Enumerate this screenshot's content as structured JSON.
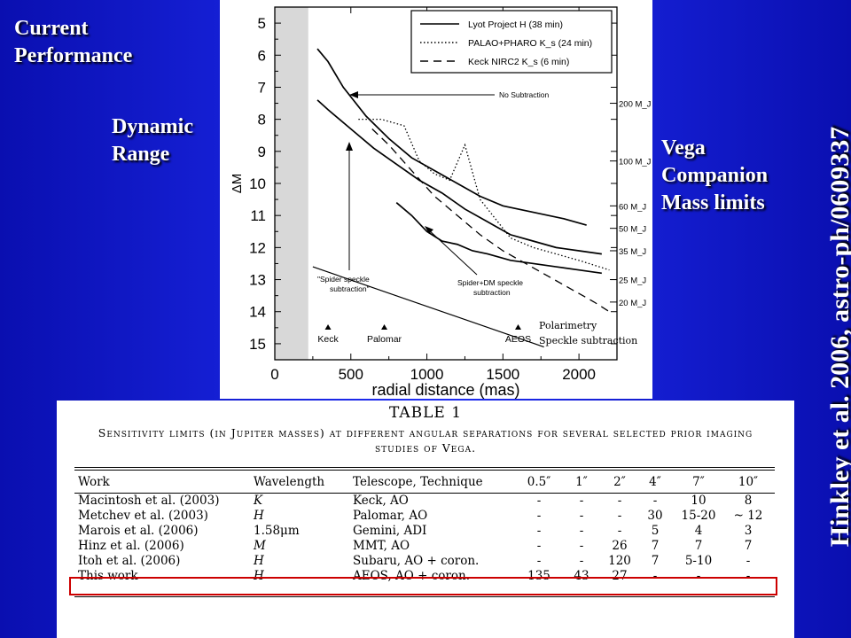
{
  "slide": {
    "title_current": "Current Performance",
    "title_dynamic": "Dynamic Range",
    "title_vega": "Vega Companion Mass limits",
    "vertical_citation": "Hinkley et al. 2006, astro-ph/0609337"
  },
  "chart_data": {
    "type": "line",
    "xlabel": "radial distance (mas)",
    "ylabel": "ΔM",
    "xlim": [
      0,
      2250
    ],
    "ylim": [
      15.5,
      4.5
    ],
    "x_ticks": [
      "0",
      "500",
      "1000",
      "1500",
      "2000"
    ],
    "y_ticks": [
      "5",
      "6",
      "7",
      "8",
      "9",
      "10",
      "11",
      "12",
      "13",
      "14",
      "15"
    ],
    "legend_position": "top-right",
    "legend": [
      {
        "label": "Lyot Project H (38 min)",
        "style": "solid"
      },
      {
        "label": "PALAO+PHARO K_s (24 min)",
        "style": "dotted"
      },
      {
        "label": "Keck NIRC2 K_s (6 min)",
        "style": "dashed"
      }
    ],
    "mass_labels": [
      {
        "label": "200 M_J",
        "dm": 7.5
      },
      {
        "label": "100 M_J",
        "dm": 9.3
      },
      {
        "label": "60 M_J",
        "dm": 10.7
      },
      {
        "label": "50 M_J",
        "dm": 11.4
      },
      {
        "label": "35 M_J",
        "dm": 12.1
      },
      {
        "label": "25 M_J",
        "dm": 13.0
      },
      {
        "label": "20 M_J",
        "dm": 13.7
      }
    ],
    "mask_region": [
      0,
      220
    ],
    "series": [
      {
        "name": "No Subtraction",
        "style": "solid",
        "x": [
          280,
          350,
          450,
          600,
          750,
          900,
          1050,
          1200,
          1350,
          1500,
          1700,
          1900,
          2050
        ],
        "y": [
          5.8,
          6.2,
          7.0,
          7.9,
          8.6,
          9.2,
          9.6,
          10.0,
          10.4,
          10.7,
          10.9,
          11.1,
          11.3
        ]
      },
      {
        "name": "Spider speckle subtraction",
        "style": "solid",
        "x": [
          280,
          350,
          500,
          650,
          800,
          950,
          1100,
          1250,
          1400,
          1550,
          1700,
          1850,
          2000,
          2150
        ],
        "y": [
          7.4,
          7.7,
          8.3,
          8.9,
          9.4,
          9.9,
          10.3,
          10.8,
          11.2,
          11.6,
          11.8,
          12.0,
          12.1,
          12.2
        ]
      },
      {
        "name": "Spider+DM speckle subtraction",
        "style": "solid",
        "x": [
          800,
          900,
          1000,
          1100,
          1200,
          1300,
          1400,
          1550,
          1700,
          1850,
          2000,
          2150
        ],
        "y": [
          10.6,
          11.0,
          11.5,
          11.8,
          11.9,
          12.1,
          12.2,
          12.4,
          12.5,
          12.6,
          12.7,
          12.8
        ]
      },
      {
        "name": "PALAO+PHARO K_s (24 min)",
        "style": "dotted",
        "x": [
          550,
          700,
          850,
          950,
          1050,
          1150,
          1250,
          1350,
          1450,
          1550,
          1700,
          1850,
          2000,
          2200
        ],
        "y": [
          8.0,
          8.0,
          8.2,
          9.3,
          9.7,
          9.9,
          8.8,
          10.5,
          11.1,
          11.7,
          12.0,
          12.2,
          12.4,
          12.7
        ]
      },
      {
        "name": "Keck NIRC2 K_s (6 min)",
        "style": "dashed",
        "x": [
          640,
          750,
          900,
          1050,
          1200,
          1350,
          1500,
          1650,
          1800,
          1950,
          2100,
          2200
        ],
        "y": [
          8.3,
          8.8,
          9.6,
          10.4,
          11.0,
          11.6,
          12.1,
          12.5,
          12.9,
          13.3,
          13.7,
          14.0
        ]
      }
    ],
    "overlay_line": {
      "label": "Polarimetry Speckle subtraction",
      "x": [
        250,
        1770
      ],
      "y": [
        12.6,
        15.1
      ]
    },
    "annotations": {
      "no_subtraction": "No Subtraction",
      "spider": [
        "\"Spider speckle",
        "subtraction\""
      ],
      "spider_dm": [
        "Spider+DM speckle",
        "subtraction"
      ],
      "overlay_line_1": "Polarimetry",
      "overlay_line_2": "Speckle subtraction"
    },
    "telescopes": [
      {
        "name": "Keck",
        "x": 350
      },
      {
        "name": "Palomar",
        "x": 720
      },
      {
        "name": "AEOS",
        "x": 1600
      }
    ]
  },
  "table": {
    "heading": "TABLE 1",
    "caption": "Sensitivity limits (in Jupiter masses) at different angular separations for several selected prior imaging studies of Vega.",
    "columns": [
      "Work",
      "Wavelength",
      "Telescope, Technique",
      "0.5″",
      "1″",
      "2″",
      "4″",
      "7″",
      "10″"
    ],
    "rows": [
      [
        "Macintosh et al. (2003)",
        "K",
        "Keck, AO",
        "-",
        "-",
        "-",
        "-",
        "10",
        "8"
      ],
      [
        "Metchev et al. (2003)",
        "H",
        "Palomar, AO",
        "-",
        "-",
        "-",
        "30",
        "15-20",
        "~ 12"
      ],
      [
        "Marois et al. (2006)",
        "1.58μm",
        "Gemini, ADI",
        "-",
        "-",
        "-",
        "5",
        "4",
        "3"
      ],
      [
        "Hinz et al. (2006)",
        "M",
        "MMT, AO",
        "-",
        "-",
        "26",
        "7",
        "7",
        "7"
      ],
      [
        "Itoh et al. (2006)",
        "H",
        "Subaru, AO + coron.",
        "-",
        "-",
        "120",
        "7",
        "5-10",
        "-"
      ],
      [
        "This work",
        "H",
        "AEOS, AO + coron.",
        "135",
        "43",
        "27",
        "-",
        "-",
        "-"
      ]
    ],
    "highlight_row": 5,
    "highlight_color": "#cc0000"
  }
}
